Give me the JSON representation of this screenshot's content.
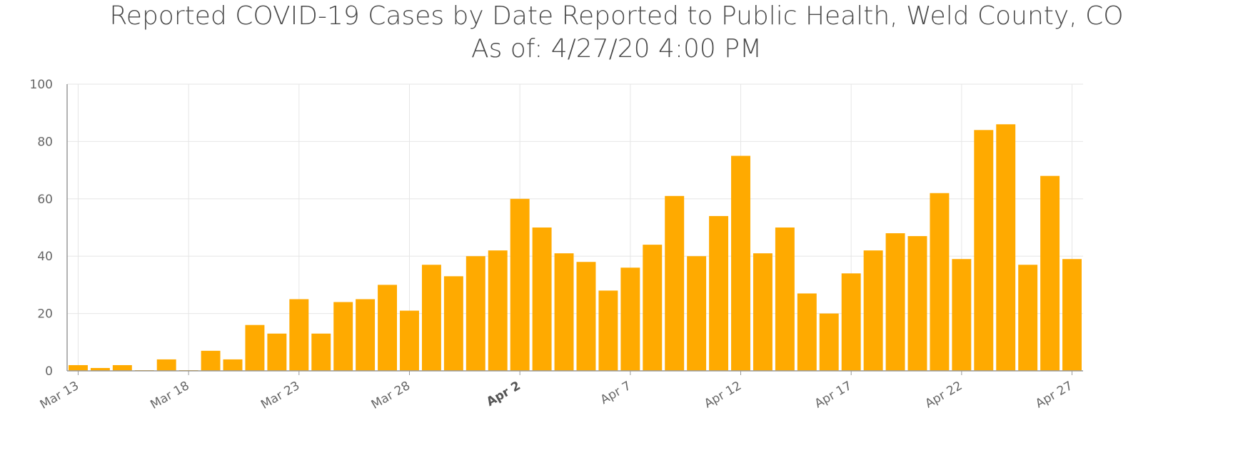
{
  "chart_data": {
    "type": "bar",
    "title": "Reported COVID-19 Cases by Date Reported to Public Health, Weld County, CO",
    "subtitle": "As of: 4/27/20 4:00 PM",
    "xlabel": "",
    "ylabel": "",
    "ylim": [
      0,
      100
    ],
    "yticks": [
      0,
      20,
      40,
      60,
      80,
      100
    ],
    "grid": true,
    "legend": "none",
    "bar_color": "#FFAA00",
    "categories": [
      "Mar 13",
      "Mar 14",
      "Mar 15",
      "Mar 16",
      "Mar 17",
      "Mar 18",
      "Mar 19",
      "Mar 20",
      "Mar 21",
      "Mar 22",
      "Mar 23",
      "Mar 24",
      "Mar 25",
      "Mar 26",
      "Mar 27",
      "Mar 28",
      "Mar 29",
      "Mar 30",
      "Mar 31",
      "Apr 1",
      "Apr 2",
      "Apr 3",
      "Apr 4",
      "Apr 5",
      "Apr 6",
      "Apr 7",
      "Apr 8",
      "Apr 9",
      "Apr 10",
      "Apr 11",
      "Apr 12",
      "Apr 13",
      "Apr 14",
      "Apr 15",
      "Apr 16",
      "Apr 17",
      "Apr 18",
      "Apr 19",
      "Apr 20",
      "Apr 21",
      "Apr 22",
      "Apr 23",
      "Apr 24",
      "Apr 25",
      "Apr 26",
      "Apr 27"
    ],
    "values": [
      2,
      1,
      2,
      0,
      4,
      0,
      7,
      4,
      16,
      13,
      25,
      13,
      24,
      25,
      30,
      21,
      37,
      33,
      40,
      42,
      60,
      50,
      41,
      38,
      28,
      36,
      44,
      61,
      40,
      54,
      75,
      41,
      50,
      27,
      20,
      34,
      42,
      48,
      47,
      62,
      39,
      84,
      86,
      37,
      68,
      39
    ],
    "xtick_labels": [
      {
        "label": "Mar 13",
        "category": "Mar 13",
        "bold": false
      },
      {
        "label": "Mar 18",
        "category": "Mar 18",
        "bold": false
      },
      {
        "label": "Mar 23",
        "category": "Mar 23",
        "bold": false
      },
      {
        "label": "Mar 28",
        "category": "Mar 28",
        "bold": false
      },
      {
        "label": "Apr 2",
        "category": "Apr 2",
        "bold": true
      },
      {
        "label": "Apr 7",
        "category": "Apr 7",
        "bold": false
      },
      {
        "label": "Apr 12",
        "category": "Apr 12",
        "bold": false
      },
      {
        "label": "Apr 17",
        "category": "Apr 17",
        "bold": false
      },
      {
        "label": "Apr 22",
        "category": "Apr 22",
        "bold": false
      },
      {
        "label": "Apr 27",
        "category": "Apr 27",
        "bold": false
      }
    ]
  }
}
